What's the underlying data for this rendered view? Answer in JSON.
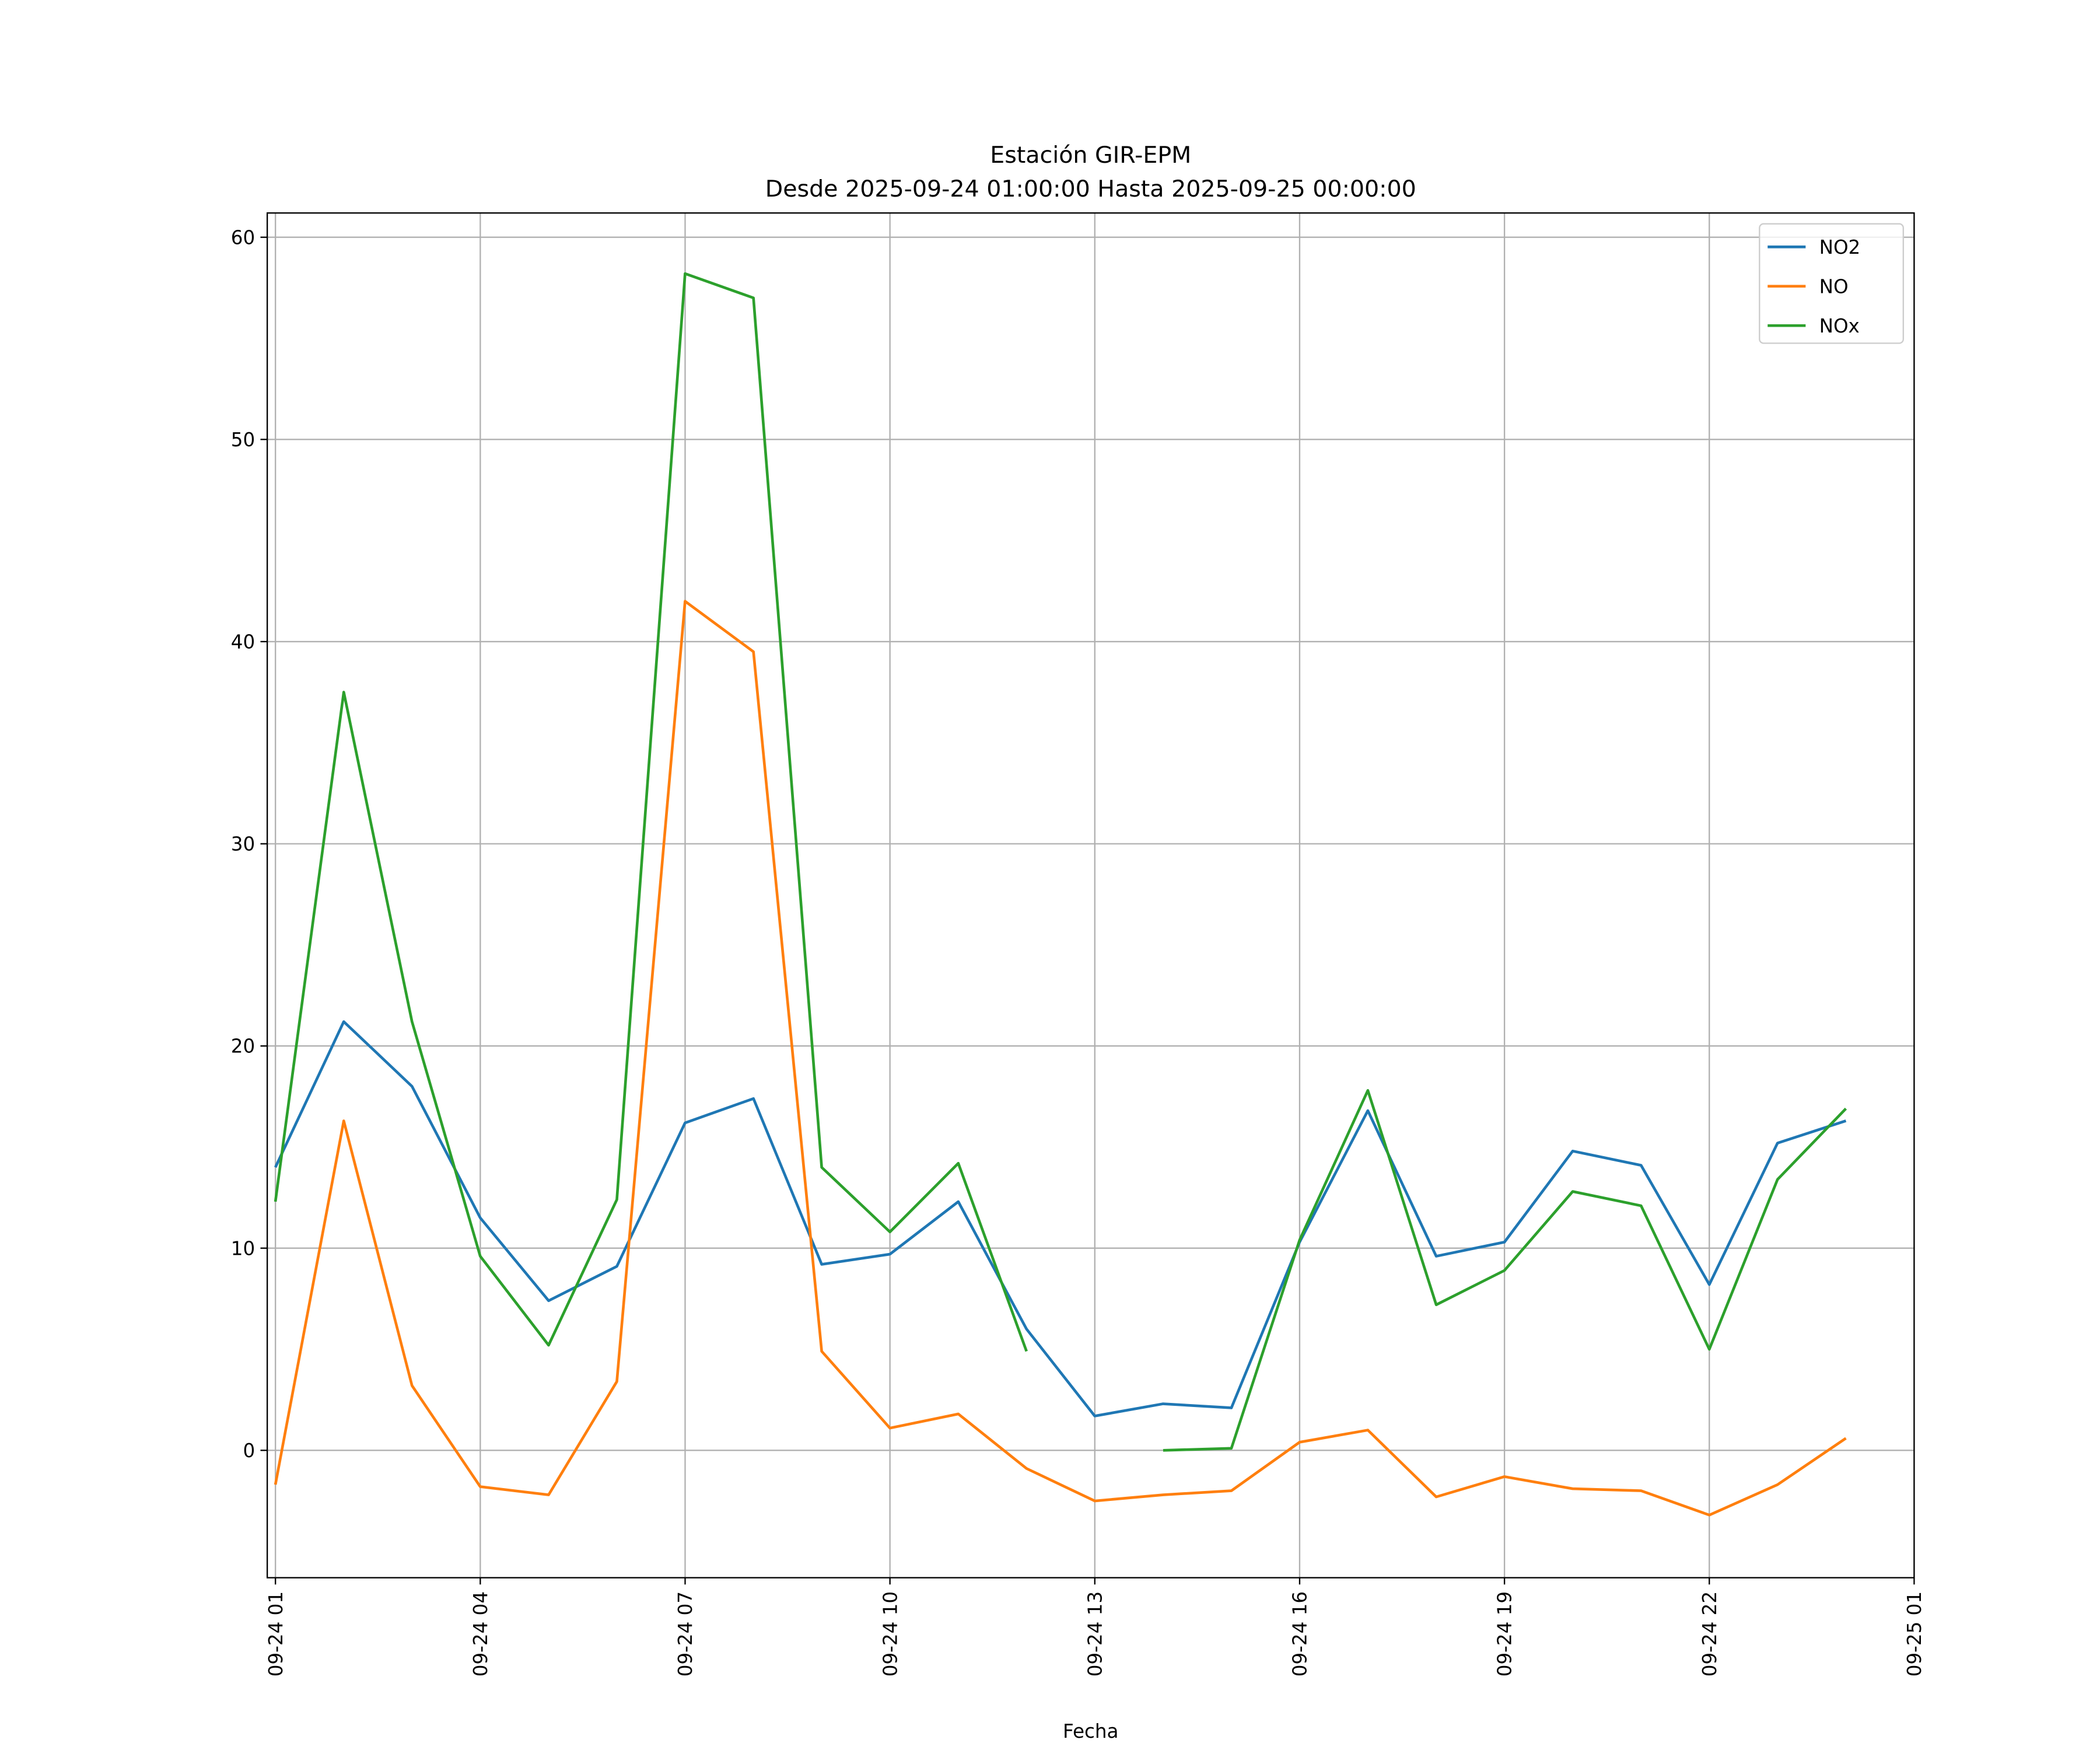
{
  "chart_data": {
    "type": "line",
    "title": "Estación GIR-EPM",
    "subtitle": "Desde 2025-09-24 01:00:00 Hasta 2025-09-25 00:00:00",
    "xlabel": "Fecha",
    "ylabel": "",
    "x_hours": [
      1,
      2,
      3,
      4,
      5,
      6,
      7,
      8,
      9,
      10,
      11,
      12,
      13,
      14,
      15,
      16,
      17,
      18,
      19,
      20,
      21,
      22,
      23,
      24
    ],
    "xlim": [
      0.88,
      25.0
    ],
    "ylim": [
      -6.3,
      61.2
    ],
    "grid": true,
    "legend_placement": "top-right",
    "x_ticks": [
      {
        "hour": 1,
        "label": "09-24 01"
      },
      {
        "hour": 4,
        "label": "09-24 04"
      },
      {
        "hour": 7,
        "label": "09-24 07"
      },
      {
        "hour": 10,
        "label": "09-24 10"
      },
      {
        "hour": 13,
        "label": "09-24 13"
      },
      {
        "hour": 16,
        "label": "09-24 16"
      },
      {
        "hour": 19,
        "label": "09-24 19"
      },
      {
        "hour": 22,
        "label": "09-24 22"
      },
      {
        "hour": 25,
        "label": "09-25 01"
      }
    ],
    "y_ticks": [
      0,
      10,
      20,
      30,
      40,
      50,
      60
    ],
    "series": [
      {
        "name": "NO2",
        "color": "#1f77b4",
        "values": [
          14.0,
          21.2,
          18.0,
          11.5,
          7.4,
          9.1,
          16.2,
          17.4,
          9.2,
          9.7,
          12.3,
          6.0,
          1.7,
          2.3,
          2.1,
          10.3,
          16.8,
          9.6,
          10.3,
          14.8,
          14.1,
          8.2,
          15.2,
          16.3
        ]
      },
      {
        "name": "NO",
        "color": "#ff7f0e",
        "values": [
          -1.7,
          16.3,
          3.2,
          -1.8,
          -2.2,
          3.4,
          42.0,
          39.5,
          4.9,
          1.1,
          1.8,
          -0.9,
          -2.5,
          -2.2,
          -2.0,
          0.4,
          1.0,
          -2.3,
          -1.3,
          -1.9,
          -2.0,
          -3.2,
          -1.7,
          0.6
        ]
      },
      {
        "name": "NOx",
        "color": "#2ca02c",
        "values": [
          12.3,
          37.5,
          21.2,
          9.6,
          5.2,
          12.4,
          58.2,
          57.0,
          14.0,
          10.8,
          14.2,
          4.9,
          null,
          0.0,
          0.1,
          10.4,
          17.8,
          7.2,
          8.9,
          12.8,
          12.1,
          5.0,
          13.4,
          16.9
        ]
      }
    ]
  }
}
